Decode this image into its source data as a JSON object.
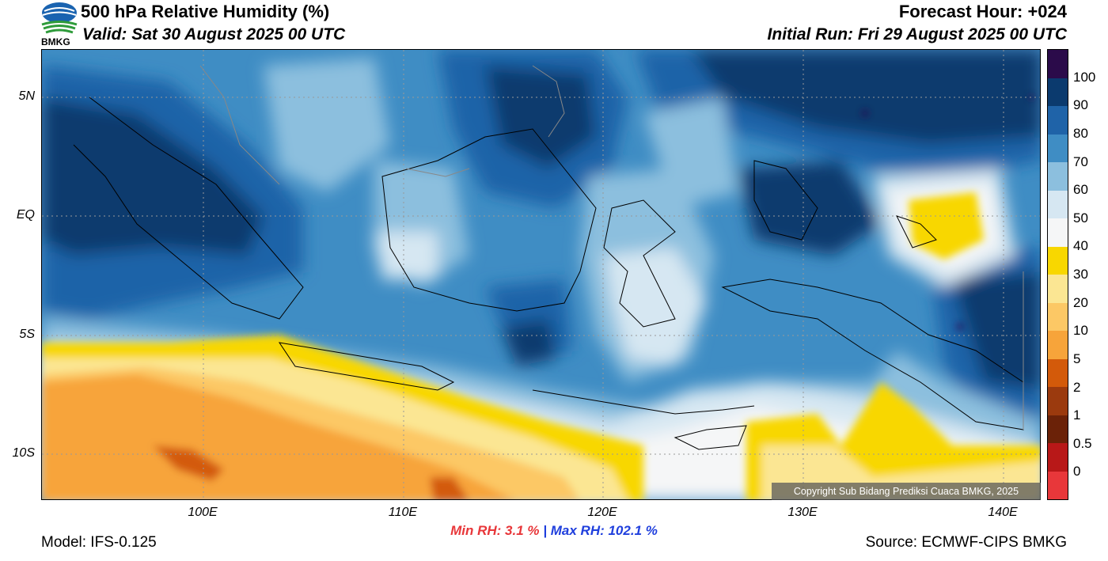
{
  "header": {
    "title": "500 hPa Relative Humidity (%)",
    "valid": "Valid: Sat 30 August 2025 00 UTC",
    "forecast_hour": "Forecast Hour: +024",
    "initial_run": "Initial Run: Fri 29 August 2025 00 UTC",
    "logo_text": "BMKG"
  },
  "map": {
    "lat_labels": [
      "5N",
      "EQ",
      "5S",
      "10S"
    ],
    "lon_labels": [
      "100E",
      "110E",
      "120E",
      "130E",
      "140E"
    ],
    "copyright": "Copyright Sub Bidang Prediksi Cuaca BMKG, 2025"
  },
  "colorbar": {
    "labels": [
      "100",
      "90",
      "80",
      "70",
      "60",
      "50",
      "40",
      "30",
      "20",
      "10",
      "5",
      "2",
      "1",
      "0.5",
      "0"
    ],
    "colors": [
      "#2b0b4a",
      "#0b3a6e",
      "#1f63a8",
      "#3f8dc4",
      "#8cbfde",
      "#d6e7f2",
      "#f5f6f7",
      "#f8d700",
      "#fbe693",
      "#fcc865",
      "#f7a43a",
      "#d35a0a",
      "#9b3a0e",
      "#6b2208",
      "#b81818",
      "#e8373a"
    ]
  },
  "footer": {
    "min_rh": "Min RH:   3.1 %",
    "separator": "|",
    "max_rh": "Max RH: 102.1 %",
    "model": "Model: IFS-0.125",
    "source": "Source: ECMWF-CIPS BMKG"
  }
}
